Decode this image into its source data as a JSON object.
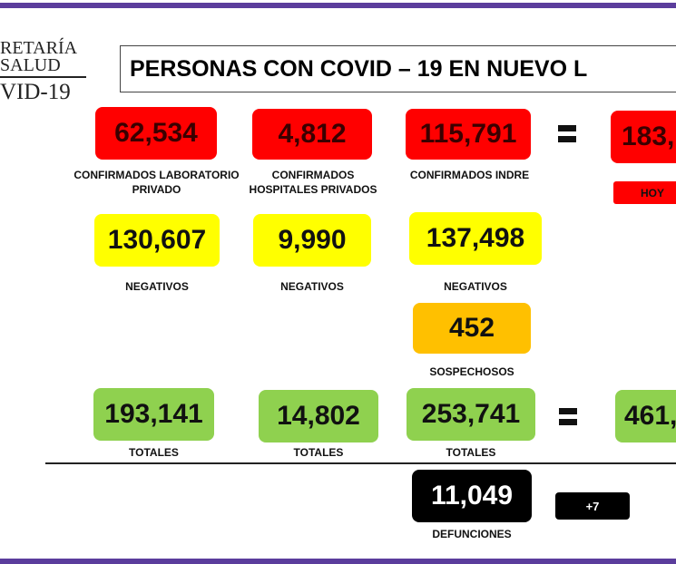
{
  "logo": {
    "line1": "RETARÍA",
    "line2": "SALUD",
    "line3": "VID-19"
  },
  "title": "PERSONAS CON COVID – 19 EN NUEVO L",
  "confirmed": [
    {
      "value": "62,534",
      "label": "CONFIRMADOS LABORATORIO PRIVADO"
    },
    {
      "value": "4,812",
      "label": "CONFIRMADOS HOSPITALES PRIVADOS"
    },
    {
      "value": "115,791",
      "label": "CONFIRMADOS INDRE"
    },
    {
      "value": "183,",
      "label": "HOY"
    }
  ],
  "negatives": [
    {
      "value": "130,607",
      "label": "NEGATIVOS"
    },
    {
      "value": "9,990",
      "label": "NEGATIVOS"
    },
    {
      "value": "137,498",
      "label": "NEGATIVOS"
    }
  ],
  "suspects": {
    "value": "452",
    "label": "SOSPECHOSOS"
  },
  "totals": [
    {
      "value": "193,141",
      "label": "TOTALES"
    },
    {
      "value": "14,802",
      "label": "TOTALES"
    },
    {
      "value": "253,741",
      "label": "TOTALES"
    },
    {
      "value": "461,"
    }
  ],
  "deaths": {
    "value": "11,049",
    "label": "DEFUNCIONES",
    "delta": "+7"
  },
  "colors": {
    "confirmed": "#ff0000",
    "negative": "#ffff00",
    "suspect": "#ffc000",
    "total": "#8fd14f",
    "deaths": "#000000",
    "frame": "#5b3d9c"
  }
}
